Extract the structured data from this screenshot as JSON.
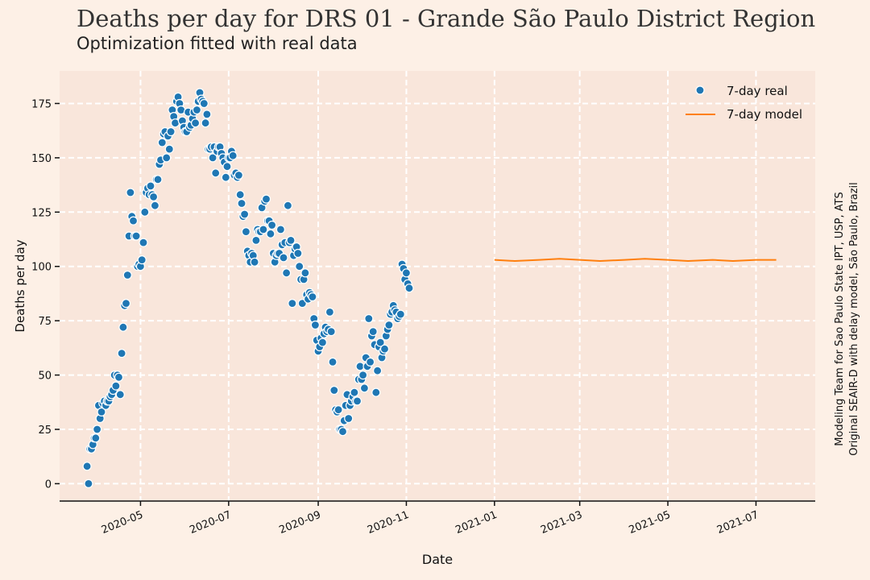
{
  "chart_data": {
    "type": "scatter",
    "title": "Deaths per day for DRS 01 - Grande São Paulo District Region",
    "subtitle": "Optimization fitted with real data",
    "xlabel": "Date",
    "ylabel": "Deaths per day",
    "side_note": [
      "Modeling Team for Sao Paulo State IPT, USP, ATS",
      "Original SEAIR-D with delay model, São Paulo, Brazil"
    ],
    "grid": true,
    "legend_position": "top-right",
    "xlim": [
      "2020-03-06",
      "2021-08-11"
    ],
    "ylim": [
      -8,
      190
    ],
    "x_ticks": [
      "2020-05",
      "2020-07",
      "2020-09",
      "2020-11",
      "2021-01",
      "2021-03",
      "2021-05",
      "2021-07"
    ],
    "y_ticks": [
      0,
      25,
      50,
      75,
      100,
      125,
      150,
      175
    ],
    "colors": {
      "real": "#1f77b4",
      "model": "#ff7f0e",
      "background": "#fdf0e6",
      "plot_background": "#f9e6db",
      "grid": "#ffffff",
      "text": "#222222"
    },
    "series": [
      {
        "name": "7-day real",
        "kind": "scatter",
        "points": [
          [
            "2020-03-25",
            8
          ],
          [
            "2020-03-26",
            0
          ],
          [
            "2020-03-27",
            16
          ],
          [
            "2020-03-28",
            16
          ],
          [
            "2020-03-29",
            18
          ],
          [
            "2020-03-30",
            21
          ],
          [
            "2020-03-31",
            21
          ],
          [
            "2020-04-01",
            25
          ],
          [
            "2020-04-02",
            36
          ],
          [
            "2020-04-03",
            30
          ],
          [
            "2020-04-04",
            33
          ],
          [
            "2020-04-05",
            37
          ],
          [
            "2020-04-06",
            38
          ],
          [
            "2020-04-07",
            36
          ],
          [
            "2020-04-08",
            38
          ],
          [
            "2020-04-09",
            38
          ],
          [
            "2020-04-10",
            40
          ],
          [
            "2020-04-11",
            41
          ],
          [
            "2020-04-12",
            43
          ],
          [
            "2020-04-13",
            50
          ],
          [
            "2020-04-14",
            45
          ],
          [
            "2020-04-15",
            50
          ],
          [
            "2020-04-16",
            49
          ],
          [
            "2020-04-17",
            41
          ],
          [
            "2020-04-18",
            60
          ],
          [
            "2020-04-19",
            72
          ],
          [
            "2020-04-20",
            82
          ],
          [
            "2020-04-21",
            83
          ],
          [
            "2020-04-22",
            96
          ],
          [
            "2020-04-23",
            114
          ],
          [
            "2020-04-24",
            134
          ],
          [
            "2020-04-25",
            123
          ],
          [
            "2020-04-26",
            121
          ],
          [
            "2020-04-27",
            114
          ],
          [
            "2020-04-28",
            114
          ],
          [
            "2020-04-29",
            100
          ],
          [
            "2020-04-30",
            101
          ],
          [
            "2020-05-01",
            100
          ],
          [
            "2020-05-02",
            103
          ],
          [
            "2020-05-03",
            111
          ],
          [
            "2020-05-04",
            125
          ],
          [
            "2020-05-05",
            134
          ],
          [
            "2020-05-06",
            136
          ],
          [
            "2020-05-07",
            133
          ],
          [
            "2020-05-08",
            137
          ],
          [
            "2020-05-09",
            133
          ],
          [
            "2020-05-10",
            132
          ],
          [
            "2020-05-11",
            128
          ],
          [
            "2020-05-12",
            140
          ],
          [
            "2020-05-13",
            140
          ],
          [
            "2020-05-14",
            147
          ],
          [
            "2020-05-15",
            149
          ],
          [
            "2020-05-16",
            157
          ],
          [
            "2020-05-17",
            161
          ],
          [
            "2020-05-18",
            162
          ],
          [
            "2020-05-19",
            150
          ],
          [
            "2020-05-20",
            160
          ],
          [
            "2020-05-21",
            154
          ],
          [
            "2020-05-22",
            162
          ],
          [
            "2020-05-23",
            172
          ],
          [
            "2020-05-24",
            169
          ],
          [
            "2020-05-25",
            166
          ],
          [
            "2020-05-26",
            176
          ],
          [
            "2020-05-27",
            178
          ],
          [
            "2020-05-28",
            175
          ],
          [
            "2020-05-29",
            172
          ],
          [
            "2020-05-30",
            167
          ],
          [
            "2020-05-31",
            164
          ],
          [
            "2020-06-01",
            162
          ],
          [
            "2020-06-02",
            162
          ],
          [
            "2020-06-03",
            171
          ],
          [
            "2020-06-04",
            164
          ],
          [
            "2020-06-05",
            165
          ],
          [
            "2020-06-06",
            168
          ],
          [
            "2020-06-07",
            171
          ],
          [
            "2020-06-08",
            166
          ],
          [
            "2020-06-09",
            172
          ],
          [
            "2020-06-10",
            176
          ],
          [
            "2020-06-11",
            180
          ],
          [
            "2020-06-12",
            177
          ],
          [
            "2020-06-13",
            176
          ],
          [
            "2020-06-14",
            175
          ],
          [
            "2020-06-15",
            166
          ],
          [
            "2020-06-16",
            170
          ],
          [
            "2020-06-17",
            154
          ],
          [
            "2020-06-18",
            154
          ],
          [
            "2020-06-19",
            155
          ],
          [
            "2020-06-20",
            150
          ],
          [
            "2020-06-21",
            155
          ],
          [
            "2020-06-22",
            143
          ],
          [
            "2020-06-23",
            153
          ],
          [
            "2020-06-24",
            155
          ],
          [
            "2020-06-25",
            155
          ],
          [
            "2020-06-26",
            152
          ],
          [
            "2020-06-27",
            150
          ],
          [
            "2020-06-28",
            148
          ],
          [
            "2020-06-29",
            141
          ],
          [
            "2020-06-30",
            146
          ],
          [
            "2020-07-01",
            150
          ],
          [
            "2020-07-02",
            150
          ],
          [
            "2020-07-03",
            153
          ],
          [
            "2020-07-04",
            151
          ],
          [
            "2020-07-05",
            142
          ],
          [
            "2020-07-06",
            143
          ],
          [
            "2020-07-07",
            141
          ],
          [
            "2020-07-08",
            142
          ],
          [
            "2020-07-09",
            133
          ],
          [
            "2020-07-10",
            129
          ],
          [
            "2020-07-11",
            123
          ],
          [
            "2020-07-12",
            124
          ],
          [
            "2020-07-13",
            116
          ],
          [
            "2020-07-14",
            107
          ],
          [
            "2020-07-15",
            105
          ],
          [
            "2020-07-16",
            102
          ],
          [
            "2020-07-17",
            106
          ],
          [
            "2020-07-18",
            105
          ],
          [
            "2020-07-19",
            102
          ],
          [
            "2020-07-20",
            112
          ],
          [
            "2020-07-21",
            117
          ],
          [
            "2020-07-22",
            116
          ],
          [
            "2020-07-23",
            116
          ],
          [
            "2020-07-24",
            127
          ],
          [
            "2020-07-25",
            117
          ],
          [
            "2020-07-26",
            130
          ],
          [
            "2020-07-27",
            131
          ],
          [
            "2020-07-28",
            121
          ],
          [
            "2020-07-29",
            121
          ],
          [
            "2020-07-30",
            115
          ],
          [
            "2020-07-31",
            119
          ],
          [
            "2020-08-01",
            106
          ],
          [
            "2020-08-02",
            102
          ],
          [
            "2020-08-03",
            105
          ],
          [
            "2020-08-04",
            106
          ],
          [
            "2020-08-05",
            106
          ],
          [
            "2020-08-06",
            117
          ],
          [
            "2020-08-07",
            110
          ],
          [
            "2020-08-08",
            104
          ],
          [
            "2020-08-09",
            111
          ],
          [
            "2020-08-10",
            97
          ],
          [
            "2020-08-11",
            128
          ],
          [
            "2020-08-12",
            111
          ],
          [
            "2020-08-13",
            112
          ],
          [
            "2020-08-14",
            83
          ],
          [
            "2020-08-15",
            105
          ],
          [
            "2020-08-16",
            108
          ],
          [
            "2020-08-17",
            109
          ],
          [
            "2020-08-18",
            106
          ],
          [
            "2020-08-19",
            100
          ],
          [
            "2020-08-20",
            94
          ],
          [
            "2020-08-21",
            83
          ],
          [
            "2020-08-22",
            94
          ],
          [
            "2020-08-23",
            97
          ],
          [
            "2020-08-24",
            87
          ],
          [
            "2020-08-25",
            85
          ],
          [
            "2020-08-26",
            88
          ],
          [
            "2020-08-27",
            87
          ],
          [
            "2020-08-28",
            86
          ],
          [
            "2020-08-29",
            76
          ],
          [
            "2020-08-30",
            73
          ],
          [
            "2020-08-31",
            66
          ],
          [
            "2020-09-01",
            61
          ],
          [
            "2020-09-02",
            63
          ],
          [
            "2020-09-03",
            67
          ],
          [
            "2020-09-04",
            65
          ],
          [
            "2020-09-05",
            69
          ],
          [
            "2020-09-06",
            72
          ],
          [
            "2020-09-07",
            70
          ],
          [
            "2020-09-08",
            71
          ],
          [
            "2020-09-09",
            79
          ],
          [
            "2020-09-10",
            70
          ],
          [
            "2020-09-11",
            56
          ],
          [
            "2020-09-12",
            43
          ],
          [
            "2020-09-13",
            34
          ],
          [
            "2020-09-14",
            33
          ],
          [
            "2020-09-15",
            34
          ],
          [
            "2020-09-16",
            25
          ],
          [
            "2020-09-17",
            25
          ],
          [
            "2020-09-18",
            24
          ],
          [
            "2020-09-19",
            29
          ],
          [
            "2020-09-20",
            36
          ],
          [
            "2020-09-21",
            41
          ],
          [
            "2020-09-22",
            30
          ],
          [
            "2020-09-23",
            36
          ],
          [
            "2020-09-24",
            38
          ],
          [
            "2020-09-25",
            40
          ],
          [
            "2020-09-26",
            42
          ],
          [
            "2020-09-27",
            38
          ],
          [
            "2020-09-28",
            38
          ],
          [
            "2020-09-29",
            48
          ],
          [
            "2020-09-30",
            54
          ],
          [
            "2020-10-01",
            48
          ],
          [
            "2020-10-02",
            50
          ],
          [
            "2020-10-03",
            44
          ],
          [
            "2020-10-04",
            58
          ],
          [
            "2020-10-05",
            54
          ],
          [
            "2020-10-06",
            76
          ],
          [
            "2020-10-07",
            56
          ],
          [
            "2020-10-08",
            68
          ],
          [
            "2020-10-09",
            70
          ],
          [
            "2020-10-10",
            64
          ],
          [
            "2020-10-11",
            42
          ],
          [
            "2020-10-12",
            52
          ],
          [
            "2020-10-13",
            63
          ],
          [
            "2020-10-14",
            65
          ],
          [
            "2020-10-15",
            58
          ],
          [
            "2020-10-16",
            61
          ],
          [
            "2020-10-17",
            62
          ],
          [
            "2020-10-18",
            68
          ],
          [
            "2020-10-19",
            71
          ],
          [
            "2020-10-20",
            73
          ],
          [
            "2020-10-21",
            78
          ],
          [
            "2020-10-22",
            79
          ],
          [
            "2020-10-23",
            82
          ],
          [
            "2020-10-24",
            80
          ],
          [
            "2020-10-25",
            79
          ],
          [
            "2020-10-26",
            76
          ],
          [
            "2020-10-27",
            77
          ],
          [
            "2020-10-28",
            78
          ],
          [
            "2020-10-29",
            101
          ],
          [
            "2020-10-30",
            99
          ],
          [
            "2020-10-31",
            94
          ],
          [
            "2020-11-01",
            97
          ],
          [
            "2020-11-02",
            92
          ],
          [
            "2020-11-03",
            90
          ]
        ]
      },
      {
        "name": "7-day model",
        "kind": "line",
        "points": [
          [
            "2021-01-01",
            103
          ],
          [
            "2021-01-15",
            102.5
          ],
          [
            "2021-02-01",
            103
          ],
          [
            "2021-02-15",
            103.5
          ],
          [
            "2021-03-01",
            103
          ],
          [
            "2021-03-15",
            102.5
          ],
          [
            "2021-04-01",
            103
          ],
          [
            "2021-04-15",
            103.5
          ],
          [
            "2021-05-01",
            103
          ],
          [
            "2021-05-15",
            102.5
          ],
          [
            "2021-06-01",
            103
          ],
          [
            "2021-06-15",
            102.5
          ],
          [
            "2021-07-01",
            103
          ],
          [
            "2021-07-15",
            103
          ]
        ]
      }
    ]
  }
}
